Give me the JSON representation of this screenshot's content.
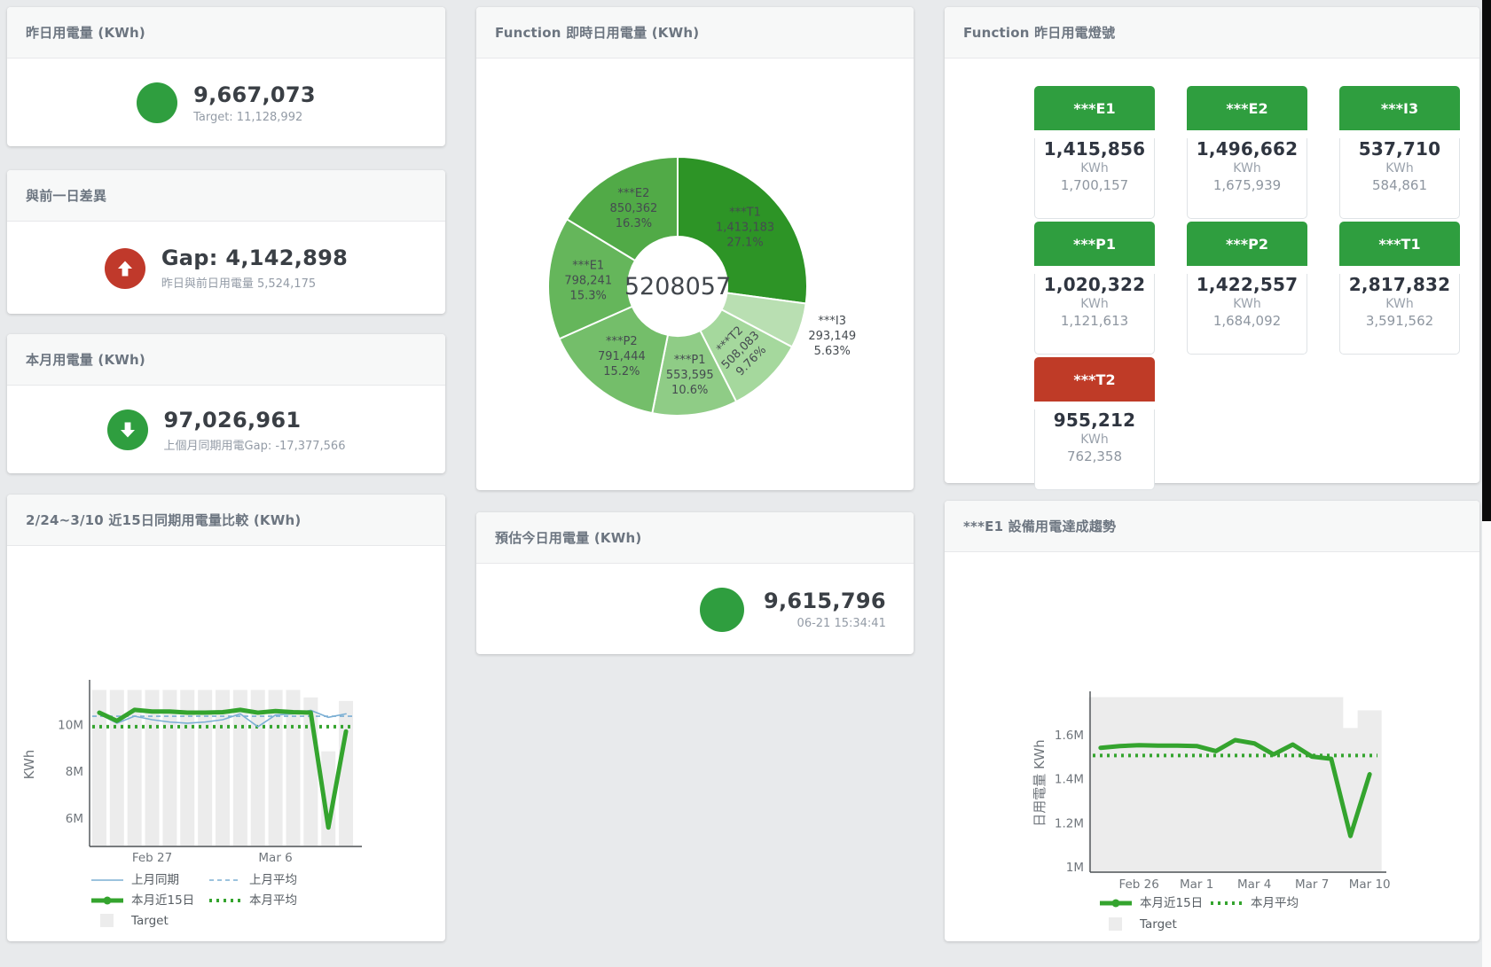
{
  "colors": {
    "green": "#2f9e3f",
    "chart_green": "#34a42e",
    "red": "#c0392b",
    "blue": "#7bafd4",
    "target_gray": "#ececec",
    "title_gray": "#6c7580"
  },
  "cards": {
    "yesterday": {
      "title": "昨日用電量 (KWh)",
      "value": "9,667,073",
      "subtitle": "Target: 11,128,992",
      "indicator": "green-circle"
    },
    "gap": {
      "title": "與前一日差異",
      "value": "Gap: 4,142,898",
      "subtitle": "昨日與前日用電量 5,524,175",
      "indicator": "red-up-arrow"
    },
    "month": {
      "title": "本月用電量 (KWh)",
      "value": "97,026,961",
      "subtitle": "上個月同期用電Gap: -17,377,566",
      "indicator": "green-down-arrow"
    },
    "estimate": {
      "title": "預估今日用電量 (KWh)",
      "value": "9,615,796",
      "subtitle": "06-21 15:34:41",
      "indicator": "green-circle"
    }
  },
  "lights": {
    "title": "Function 昨日用電燈號",
    "tiles": [
      {
        "id": "E1",
        "label": "***E1",
        "value": "1,415,856",
        "unit": "KWh",
        "target": "1,700,157",
        "status_color": "#2f9e3f"
      },
      {
        "id": "E2",
        "label": "***E2",
        "value": "1,496,662",
        "unit": "KWh",
        "target": "1,675,939",
        "status_color": "#2f9e3f"
      },
      {
        "id": "I3",
        "label": "***I3",
        "value": "537,710",
        "unit": "KWh",
        "target": "584,861",
        "status_color": "#2f9e3f"
      },
      {
        "id": "P1",
        "label": "***P1",
        "value": "1,020,322",
        "unit": "KWh",
        "target": "1,121,613",
        "status_color": "#2f9e3f"
      },
      {
        "id": "P2",
        "label": "***P2",
        "value": "1,422,557",
        "unit": "KWh",
        "target": "1,684,092",
        "status_color": "#2f9e3f"
      },
      {
        "id": "T1",
        "label": "***T1",
        "value": "2,817,832",
        "unit": "KWh",
        "target": "3,591,562",
        "status_color": "#2f9e3f"
      },
      {
        "id": "T2",
        "label": "***T2",
        "value": "955,212",
        "unit": "KWh",
        "target": "762,358",
        "status_color": "#bf3b27"
      }
    ]
  },
  "chart_data": [
    {
      "type": "pie",
      "title": "Function 即時日用電量 (KWh)",
      "center_total": "5208057",
      "legend_position": "none",
      "slices": [
        {
          "name": "***T1",
          "value": 1413183,
          "display": "1,413,183",
          "pct": "27.1%",
          "color": "#2d9426",
          "label_position": "inside",
          "label_rotate": 0
        },
        {
          "name": "***I3",
          "value": 293149,
          "display": "293,149",
          "pct": "5.63%",
          "color": "#b9dfb2",
          "label_position": "outside",
          "label_rotate": 0
        },
        {
          "name": "***T2",
          "value": 508083,
          "display": "508,083",
          "pct": "9.76%",
          "color": "#a5d89d",
          "label_position": "inside",
          "label_rotate": -45
        },
        {
          "name": "***P1",
          "value": 553595,
          "display": "553,595",
          "pct": "10.6%",
          "color": "#8fcc86",
          "label_position": "inside",
          "label_rotate": 0
        },
        {
          "name": "***P2",
          "value": 791444,
          "display": "791,444",
          "pct": "15.2%",
          "color": "#74be6a",
          "label_position": "inside",
          "label_rotate": 0
        },
        {
          "name": "***E1",
          "value": 798241,
          "display": "798,241",
          "pct": "15.3%",
          "color": "#65b65b",
          "label_position": "inside",
          "label_rotate": 0
        },
        {
          "name": "***E2",
          "value": 850362,
          "display": "850,362",
          "pct": "16.3%",
          "color": "#51aa47",
          "label_position": "inside",
          "label_rotate": 0
        }
      ]
    },
    {
      "type": "line",
      "title": "2/24~3/10 近15日同期用電量比較 (KWh)",
      "ylabel": "KWh",
      "values_unit": "millions of KWh",
      "ylim": [
        4.83,
        11.75
      ],
      "yticks": [
        {
          "v": 6,
          "label": "6M"
        },
        {
          "v": 8,
          "label": "8M"
        },
        {
          "v": 10,
          "label": "10M"
        }
      ],
      "xticks": [
        {
          "i": 3,
          "label": "Feb 27"
        },
        {
          "i": 10,
          "label": "Mar 6"
        }
      ],
      "grid": false,
      "target": {
        "name": "Target",
        "color": "#ececec",
        "values": [
          11.47,
          11.47,
          11.47,
          11.47,
          11.47,
          11.47,
          11.47,
          11.47,
          11.47,
          11.47,
          11.47,
          11.47,
          11.15,
          8.85,
          11.0
        ]
      },
      "series": [
        {
          "name": "上月平均",
          "type": "mean",
          "color": "#7bafd4",
          "width": 1.6,
          "dash": "5 4",
          "value": 10.35
        },
        {
          "name": "本月平均",
          "type": "mean",
          "color": "#34a42e",
          "width": 4,
          "dash": "3 5",
          "value": 9.9
        },
        {
          "name": "上月同期",
          "type": "line",
          "color": "#7bafd4",
          "width": 1.6,
          "values": [
            10.45,
            10.05,
            10.35,
            10.2,
            10.1,
            10.05,
            10.1,
            10.2,
            10.45,
            9.9,
            10.4,
            10.45,
            10.6,
            10.3,
            10.45
          ]
        },
        {
          "name": "本月近15日",
          "type": "line",
          "color": "#34a42e",
          "width": 5,
          "values": [
            10.5,
            10.15,
            10.62,
            10.55,
            10.55,
            10.5,
            10.5,
            10.52,
            10.62,
            10.5,
            10.57,
            10.52,
            10.5,
            5.6,
            9.7
          ]
        }
      ],
      "legend_rows": [
        [
          "上月同期",
          "上月平均"
        ],
        [
          "本月近15日",
          "本月平均"
        ],
        [
          "Target"
        ]
      ]
    },
    {
      "type": "line",
      "title": "***E1 設備用電達成趨勢",
      "ylabel": "日用電量 KWh",
      "values_unit": "millions of KWh",
      "ylim": [
        0.98,
        1.78
      ],
      "yticks": [
        {
          "v": 1,
          "label": "1M"
        },
        {
          "v": 1.2,
          "label": "1.2M"
        },
        {
          "v": 1.4,
          "label": "1.4M"
        },
        {
          "v": 1.6,
          "label": "1.6M"
        }
      ],
      "xticks": [
        {
          "i": 2,
          "label": "Feb 26"
        },
        {
          "i": 5,
          "label": "Mar 1"
        },
        {
          "i": 8,
          "label": "Mar 4"
        },
        {
          "i": 11,
          "label": "Mar 7"
        },
        {
          "i": 14,
          "label": "Mar 10"
        }
      ],
      "grid": false,
      "target": {
        "name": "Target",
        "color": "#ececec",
        "values": [
          1.77,
          1.77,
          1.77,
          1.77,
          1.77,
          1.77,
          1.77,
          1.77,
          1.77,
          1.77,
          1.77,
          1.77,
          1.77,
          1.63,
          1.71
        ]
      },
      "series": [
        {
          "name": "本月平均",
          "type": "mean",
          "color": "#34a42e",
          "width": 4,
          "dash": "3 5",
          "value": 1.505
        },
        {
          "name": "本月近15日",
          "type": "line",
          "color": "#34a42e",
          "width": 5,
          "values": [
            1.54,
            1.548,
            1.552,
            1.55,
            1.55,
            1.548,
            1.525,
            1.575,
            1.56,
            1.51,
            1.555,
            1.5,
            1.49,
            1.14,
            1.42
          ]
        }
      ],
      "legend_rows": [
        [
          "本月近15日",
          "本月平均"
        ],
        [
          "Target"
        ]
      ]
    }
  ]
}
